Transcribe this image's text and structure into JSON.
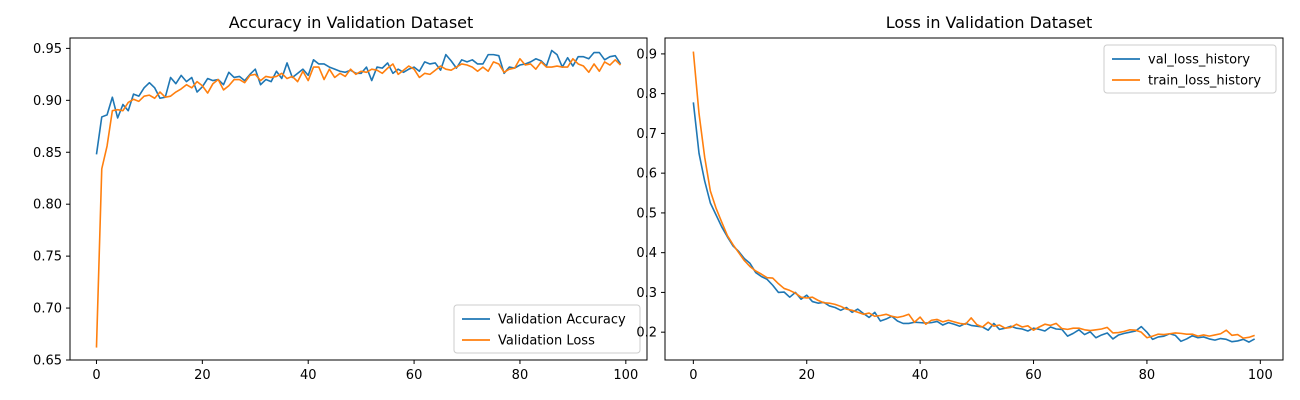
{
  "colors": {
    "series1": "#1f77b4",
    "series2": "#ff7f0e"
  },
  "chart_data": [
    {
      "type": "line",
      "title": "Accuracy in Validation Dataset",
      "xlabel": "",
      "ylabel": "",
      "xlim": [
        -5,
        104
      ],
      "ylim": [
        0.65,
        0.96
      ],
      "xticks": [
        0,
        20,
        40,
        60,
        80,
        100
      ],
      "yticks": [
        0.65,
        0.7,
        0.75,
        0.8,
        0.85,
        0.9,
        0.95
      ],
      "ytick_labels": [
        "0.65",
        "0.70",
        "0.75",
        "0.80",
        "0.85",
        "0.90",
        "0.95"
      ],
      "legend_position": "lower-right",
      "grid": false,
      "series": [
        {
          "name": "Validation Accuracy",
          "color": "#1f77b4",
          "values": [
            0.848,
            0.884,
            0.886,
            0.903,
            0.883,
            0.896,
            0.89,
            0.906,
            0.904,
            0.912,
            0.917,
            0.912,
            0.902,
            0.903,
            0.922,
            0.916,
            0.924,
            0.918,
            0.922,
            0.908,
            0.913,
            0.921,
            0.919,
            0.92,
            0.915,
            0.927,
            0.922,
            0.923,
            0.919,
            0.925,
            0.93,
            0.915,
            0.92,
            0.918,
            0.928,
            0.921,
            0.936,
            0.922,
            0.926,
            0.93,
            0.924,
            0.939,
            0.935,
            0.935,
            0.932,
            0.93,
            0.928,
            0.927,
            0.929,
            0.926,
            0.926,
            0.932,
            0.919,
            0.932,
            0.931,
            0.936,
            0.926,
            0.93,
            0.927,
            0.93,
            0.932,
            0.928,
            0.937,
            0.935,
            0.936,
            0.929,
            0.944,
            0.938,
            0.931,
            0.939,
            0.937,
            0.939,
            0.935,
            0.935,
            0.944,
            0.944,
            0.943,
            0.926,
            0.932,
            0.931,
            0.934,
            0.935,
            0.937,
            0.94,
            0.938,
            0.933,
            0.948,
            0.944,
            0.932,
            0.941,
            0.933,
            0.942,
            0.942,
            0.94,
            0.946,
            0.946,
            0.939,
            0.942,
            0.943,
            0.935
          ]
        },
        {
          "name": "Validation Loss",
          "color": "#ff7f0e",
          "values": [
            0.662,
            0.834,
            0.856,
            0.89,
            0.891,
            0.89,
            0.898,
            0.901,
            0.899,
            0.904,
            0.905,
            0.902,
            0.908,
            0.903,
            0.904,
            0.908,
            0.911,
            0.915,
            0.912,
            0.918,
            0.914,
            0.907,
            0.916,
            0.92,
            0.91,
            0.914,
            0.92,
            0.92,
            0.917,
            0.924,
            0.925,
            0.919,
            0.923,
            0.922,
            0.923,
            0.926,
            0.921,
            0.923,
            0.918,
            0.928,
            0.919,
            0.932,
            0.932,
            0.92,
            0.93,
            0.922,
            0.926,
            0.923,
            0.93,
            0.925,
            0.928,
            0.927,
            0.93,
            0.929,
            0.926,
            0.931,
            0.935,
            0.925,
            0.929,
            0.933,
            0.93,
            0.922,
            0.926,
            0.925,
            0.929,
            0.933,
            0.93,
            0.929,
            0.932,
            0.935,
            0.934,
            0.932,
            0.928,
            0.932,
            0.928,
            0.937,
            0.935,
            0.927,
            0.93,
            0.931,
            0.94,
            0.934,
            0.935,
            0.93,
            0.937,
            0.932,
            0.932,
            0.933,
            0.932,
            0.932,
            0.94,
            0.935,
            0.933,
            0.927,
            0.935,
            0.928,
            0.937,
            0.934,
            0.939,
            0.934
          ]
        }
      ]
    },
    {
      "type": "line",
      "title": "Loss in Validation Dataset",
      "xlabel": "",
      "ylabel": "",
      "xlim": [
        -5,
        104
      ],
      "ylim": [
        0.13,
        0.94
      ],
      "xticks": [
        0,
        20,
        40,
        60,
        80,
        100
      ],
      "yticks": [
        0.2,
        0.3,
        0.4,
        0.5,
        0.6,
        0.7,
        0.8,
        0.9
      ],
      "ytick_labels": [
        "0.2",
        "0.3",
        "0.4",
        "0.5",
        "0.6",
        "0.7",
        "0.8",
        "0.9"
      ],
      "legend_position": "upper-right",
      "grid": false,
      "series": [
        {
          "name": "val_loss_history",
          "color": "#1f77b4",
          "values": [
            0.778,
            0.65,
            0.58,
            0.525,
            0.495,
            0.465,
            0.44,
            0.417,
            0.403,
            0.385,
            0.373,
            0.35,
            0.34,
            0.333,
            0.318,
            0.3,
            0.301,
            0.288,
            0.3,
            0.283,
            0.293,
            0.277,
            0.273,
            0.275,
            0.266,
            0.262,
            0.255,
            0.262,
            0.25,
            0.258,
            0.247,
            0.237,
            0.25,
            0.228,
            0.233,
            0.24,
            0.228,
            0.222,
            0.222,
            0.225,
            0.224,
            0.223,
            0.224,
            0.227,
            0.218,
            0.224,
            0.22,
            0.215,
            0.222,
            0.217,
            0.215,
            0.213,
            0.205,
            0.222,
            0.207,
            0.21,
            0.215,
            0.21,
            0.208,
            0.203,
            0.21,
            0.207,
            0.203,
            0.213,
            0.208,
            0.207,
            0.19,
            0.197,
            0.206,
            0.194,
            0.201,
            0.186,
            0.193,
            0.198,
            0.183,
            0.193,
            0.197,
            0.2,
            0.203,
            0.214,
            0.2,
            0.182,
            0.188,
            0.19,
            0.196,
            0.192,
            0.177,
            0.183,
            0.191,
            0.186,
            0.188,
            0.183,
            0.18,
            0.184,
            0.182,
            0.176,
            0.178,
            0.182,
            0.175,
            0.183
          ]
        },
        {
          "name": "train_loss_history",
          "color": "#ff7f0e",
          "values": [
            0.906,
            0.75,
            0.64,
            0.555,
            0.512,
            0.477,
            0.443,
            0.42,
            0.4,
            0.38,
            0.365,
            0.354,
            0.346,
            0.337,
            0.336,
            0.322,
            0.31,
            0.305,
            0.298,
            0.288,
            0.286,
            0.288,
            0.28,
            0.274,
            0.273,
            0.27,
            0.265,
            0.258,
            0.255,
            0.25,
            0.245,
            0.248,
            0.24,
            0.242,
            0.245,
            0.24,
            0.237,
            0.24,
            0.245,
            0.225,
            0.238,
            0.22,
            0.23,
            0.232,
            0.226,
            0.23,
            0.226,
            0.222,
            0.22,
            0.236,
            0.219,
            0.213,
            0.225,
            0.215,
            0.218,
            0.21,
            0.212,
            0.22,
            0.213,
            0.216,
            0.205,
            0.213,
            0.22,
            0.217,
            0.222,
            0.209,
            0.207,
            0.21,
            0.21,
            0.206,
            0.204,
            0.206,
            0.208,
            0.212,
            0.198,
            0.199,
            0.202,
            0.206,
            0.205,
            0.2,
            0.186,
            0.19,
            0.195,
            0.194,
            0.196,
            0.198,
            0.197,
            0.195,
            0.195,
            0.19,
            0.193,
            0.19,
            0.193,
            0.196,
            0.205,
            0.192,
            0.194,
            0.185,
            0.187,
            0.192
          ]
        }
      ]
    }
  ]
}
